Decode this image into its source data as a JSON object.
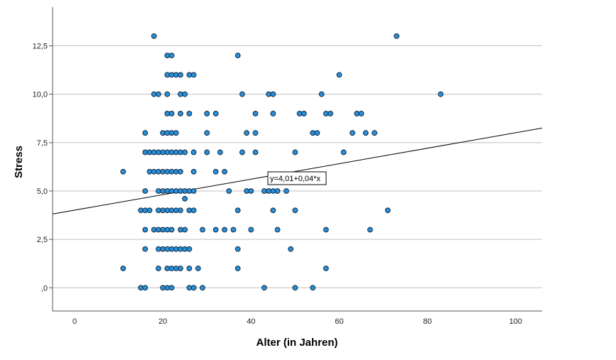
{
  "chart_data": {
    "type": "scatter",
    "xlabel": "Alter (in Jahren)",
    "ylabel": "Stress",
    "xlim": [
      -5,
      106
    ],
    "ylim": [
      -1.2,
      14.5
    ],
    "x_ticks": [
      0,
      20,
      40,
      60,
      80,
      100
    ],
    "x_tick_labels": [
      "0",
      "20",
      "40",
      "60",
      "80",
      "100"
    ],
    "y_ticks": [
      0,
      2.5,
      5,
      7.5,
      10,
      12.5
    ],
    "y_tick_labels": [
      ",0",
      "2,5",
      "5,0",
      "7,5",
      "10,0",
      "12,5"
    ],
    "grid": "horizontal",
    "fit_line": {
      "intercept": 4.01,
      "slope": 0.04,
      "label": "y=4,01+0,04*x"
    },
    "colors": {
      "point_fill": "#2b8fd6",
      "point_stroke": "#0d2a45",
      "grid": "#bfbfbf",
      "axis": "#555555",
      "fit_line": "#000000"
    },
    "points": [
      [
        18,
        13
      ],
      [
        73,
        13
      ],
      [
        21,
        12
      ],
      [
        22,
        12
      ],
      [
        37,
        12
      ],
      [
        21,
        11
      ],
      [
        22,
        11
      ],
      [
        23,
        11
      ],
      [
        24,
        11
      ],
      [
        26,
        11
      ],
      [
        27,
        11
      ],
      [
        60,
        11
      ],
      [
        18,
        10
      ],
      [
        19,
        10
      ],
      [
        21,
        10
      ],
      [
        24,
        10
      ],
      [
        25,
        10
      ],
      [
        38,
        10
      ],
      [
        44,
        10
      ],
      [
        45,
        10
      ],
      [
        56,
        10
      ],
      [
        83,
        10
      ],
      [
        21,
        9
      ],
      [
        22,
        9
      ],
      [
        24,
        9
      ],
      [
        26,
        9
      ],
      [
        30,
        9
      ],
      [
        32,
        9
      ],
      [
        41,
        9
      ],
      [
        45,
        9
      ],
      [
        51,
        9
      ],
      [
        52,
        9
      ],
      [
        57,
        9
      ],
      [
        58,
        9
      ],
      [
        64,
        9
      ],
      [
        65,
        9
      ],
      [
        16,
        8
      ],
      [
        20,
        8
      ],
      [
        21,
        8
      ],
      [
        22,
        8
      ],
      [
        23,
        8
      ],
      [
        30,
        8
      ],
      [
        39,
        8
      ],
      [
        41,
        8
      ],
      [
        54,
        8
      ],
      [
        55,
        8
      ],
      [
        63,
        8
      ],
      [
        66,
        8
      ],
      [
        68,
        8
      ],
      [
        16,
        7
      ],
      [
        17,
        7
      ],
      [
        18,
        7
      ],
      [
        19,
        7
      ],
      [
        20,
        7
      ],
      [
        21,
        7
      ],
      [
        22,
        7
      ],
      [
        23,
        7
      ],
      [
        24,
        7
      ],
      [
        25,
        7
      ],
      [
        27,
        7
      ],
      [
        30,
        7
      ],
      [
        33,
        7
      ],
      [
        38,
        7
      ],
      [
        41,
        7
      ],
      [
        50,
        7
      ],
      [
        61,
        7
      ],
      [
        11,
        6
      ],
      [
        17,
        6
      ],
      [
        18,
        6
      ],
      [
        19,
        6
      ],
      [
        20,
        6
      ],
      [
        21,
        6
      ],
      [
        22,
        6
      ],
      [
        23,
        6
      ],
      [
        24,
        6
      ],
      [
        27,
        6
      ],
      [
        32,
        6
      ],
      [
        34,
        6
      ],
      [
        16,
        5
      ],
      [
        19,
        5
      ],
      [
        20,
        5
      ],
      [
        21,
        5
      ],
      [
        22,
        5
      ],
      [
        23,
        5
      ],
      [
        24,
        5
      ],
      [
        25,
        5
      ],
      [
        26,
        5
      ],
      [
        27,
        5
      ],
      [
        35,
        5
      ],
      [
        39,
        5
      ],
      [
        40,
        5
      ],
      [
        43,
        5
      ],
      [
        44,
        5
      ],
      [
        45,
        5
      ],
      [
        46,
        5
      ],
      [
        48,
        5
      ],
      [
        25,
        4.6
      ],
      [
        15,
        4
      ],
      [
        16,
        4
      ],
      [
        17,
        4
      ],
      [
        19,
        4
      ],
      [
        20,
        4
      ],
      [
        21,
        4
      ],
      [
        22,
        4
      ],
      [
        23,
        4
      ],
      [
        24,
        4
      ],
      [
        26,
        4
      ],
      [
        27,
        4
      ],
      [
        37,
        4
      ],
      [
        45,
        4
      ],
      [
        50,
        4
      ],
      [
        71,
        4
      ],
      [
        16,
        3
      ],
      [
        18,
        3
      ],
      [
        19,
        3
      ],
      [
        20,
        3
      ],
      [
        21,
        3
      ],
      [
        22,
        3
      ],
      [
        24,
        3
      ],
      [
        25,
        3
      ],
      [
        29,
        3
      ],
      [
        32,
        3
      ],
      [
        34,
        3
      ],
      [
        36,
        3
      ],
      [
        40,
        3
      ],
      [
        46,
        3
      ],
      [
        57,
        3
      ],
      [
        67,
        3
      ],
      [
        16,
        2
      ],
      [
        19,
        2
      ],
      [
        20,
        2
      ],
      [
        21,
        2
      ],
      [
        22,
        2
      ],
      [
        23,
        2
      ],
      [
        24,
        2
      ],
      [
        25,
        2
      ],
      [
        26,
        2
      ],
      [
        37,
        2
      ],
      [
        49,
        2
      ],
      [
        11,
        1
      ],
      [
        19,
        1
      ],
      [
        21,
        1
      ],
      [
        22,
        1
      ],
      [
        23,
        1
      ],
      [
        24,
        1
      ],
      [
        26,
        1
      ],
      [
        28,
        1
      ],
      [
        37,
        1
      ],
      [
        57,
        1
      ],
      [
        15,
        0
      ],
      [
        16,
        0
      ],
      [
        20,
        0
      ],
      [
        21,
        0
      ],
      [
        22,
        0
      ],
      [
        26,
        0
      ],
      [
        27,
        0
      ],
      [
        29,
        0
      ],
      [
        43,
        0
      ],
      [
        50,
        0
      ],
      [
        54,
        0
      ]
    ]
  }
}
